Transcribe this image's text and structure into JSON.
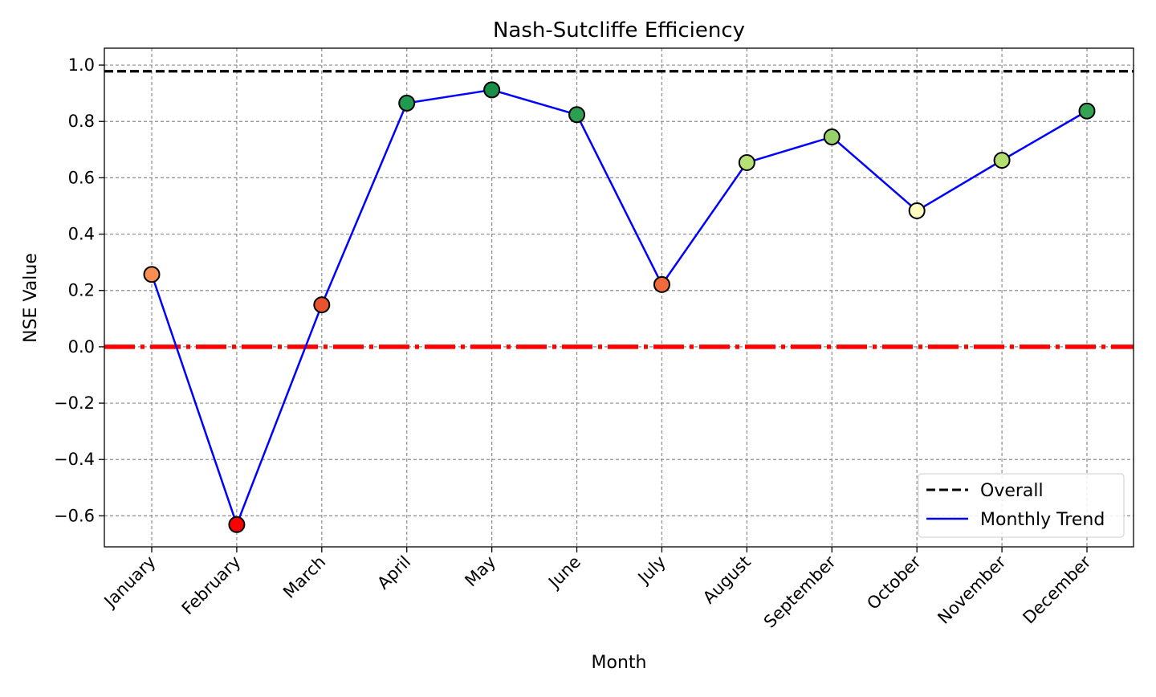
{
  "chart_data": {
    "type": "line",
    "title": "Nash-Sutcliffe Efficiency",
    "xlabel": "Month",
    "ylabel": "NSE Value",
    "categories": [
      "January",
      "February",
      "March",
      "April",
      "May",
      "June",
      "July",
      "August",
      "September",
      "October",
      "November",
      "December"
    ],
    "series": [
      {
        "name": "Monthly Trend",
        "values": [
          0.257,
          -0.631,
          0.149,
          0.865,
          0.912,
          0.824,
          0.221,
          0.654,
          0.745,
          0.483,
          0.662,
          0.837
        ],
        "line_color": "#0000ff",
        "marker_colors": [
          "#f98e52",
          "#ff0000",
          "#e8532f",
          "#219a51",
          "#178f47",
          "#2c9f52",
          "#f16a3c",
          "#b7e075",
          "#96d268",
          "#fdfdbf",
          "#b4de72",
          "#34a353"
        ]
      }
    ],
    "reference_lines": [
      {
        "name": "Overall",
        "value": 0.978,
        "color": "#000000",
        "style": "dashed",
        "in_legend": true
      },
      {
        "name": "",
        "value": 0.0,
        "color": "#ff0000",
        "style": "dashdot",
        "in_legend": false
      }
    ],
    "ylim": [
      -0.71,
      1.06
    ],
    "yticks": [
      -0.6,
      -0.4,
      -0.2,
      0.0,
      0.2,
      0.4,
      0.6,
      0.8,
      1.0
    ],
    "ytick_labels": [
      "−0.6",
      "−0.4",
      "−0.2",
      "0.0",
      "0.2",
      "0.4",
      "0.6",
      "0.8",
      "1.0"
    ],
    "grid": true,
    "legend_position": "lower-right",
    "legend": [
      "Overall",
      "Monthly Trend"
    ]
  }
}
